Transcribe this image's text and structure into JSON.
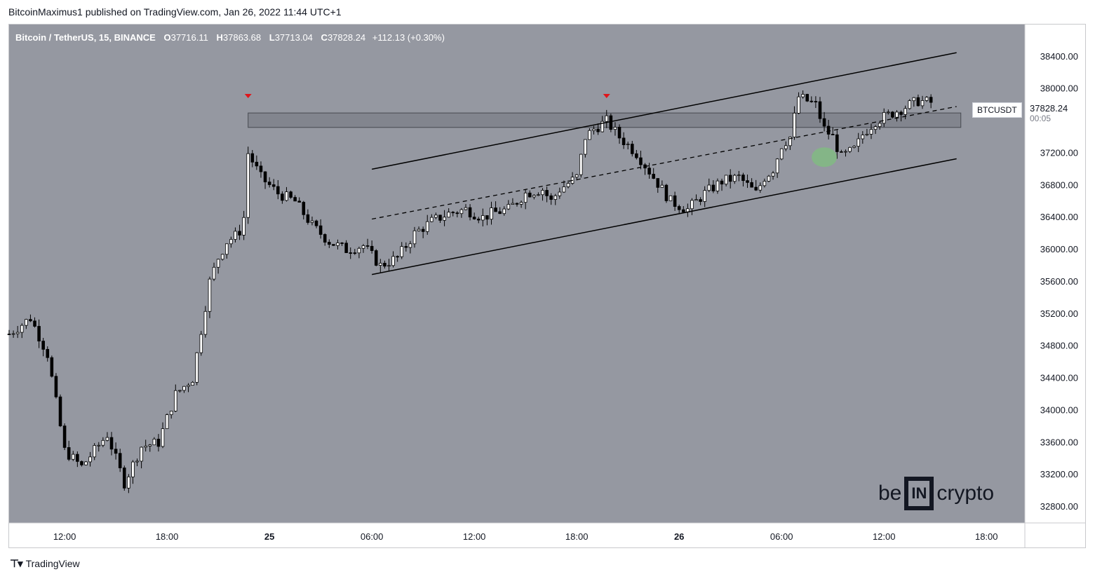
{
  "header": {
    "publish_line": "BitcoinMaximus1 published on TradingView.com, Jan 26, 2022 11:44 UTC+1"
  },
  "legend": {
    "symbol": "Bitcoin / TetherUS, 15, BINANCE",
    "open_label": "O",
    "open": "37716.11",
    "high_label": "H",
    "high": "37863.68",
    "low_label": "L",
    "low": "37713.04",
    "close_label": "C",
    "close": "37828.24",
    "change": "+112.13 (+0.30%)"
  },
  "currency_badge": "USDT",
  "symbol_tag": "BTCUSDT",
  "price_tag": {
    "price": "37828.24",
    "countdown": "00:05"
  },
  "watermark": {
    "left": "be",
    "middle": "IN",
    "right": "crypto"
  },
  "footer": {
    "brand": "TradingView"
  },
  "colors": {
    "plot_bg": "#9598a1",
    "bull": "#ffffff",
    "bear": "#000000",
    "marker": "#e0151b",
    "highlight": "#7fbf7f"
  },
  "chart_data": {
    "type": "candlestick",
    "symbol": "BTCUSDT",
    "timeframe": "15",
    "exchange": "BINANCE",
    "y_ticks": [
      38400,
      38000,
      37600,
      37200,
      36800,
      36400,
      36000,
      35600,
      35200,
      34800,
      34400,
      34000,
      33600,
      33200,
      32800
    ],
    "y_tick_labels": [
      "38400.00",
      "38000.00",
      "37600.00",
      "37200.00",
      "36800.00",
      "36400.00",
      "36000.00",
      "35600.00",
      "35200.00",
      "34800.00",
      "34400.00",
      "34000.00",
      "33600.00",
      "33200.00",
      "32800.00"
    ],
    "ylim": [
      32600,
      38800
    ],
    "x_tick_labels": [
      "12:00",
      "18:00",
      "25",
      "06:00",
      "12:00",
      "18:00",
      "26",
      "06:00",
      "12:00",
      "18:00"
    ],
    "x_tick_bold": [
      false,
      false,
      true,
      false,
      false,
      false,
      true,
      false,
      false,
      false
    ],
    "x_tick_hours": [
      12,
      18,
      24,
      30,
      36,
      42,
      48,
      54,
      60,
      66
    ],
    "xlim_hours": [
      8.75,
      68.25
    ],
    "horizontal_zone": {
      "from_hour": 22.75,
      "to_hour": 64.5,
      "low": 37520,
      "high": 37700
    },
    "channel": {
      "upper": [
        [
          30.0,
          37000
        ],
        [
          64.25,
          38450
        ]
      ],
      "middle": [
        [
          30.0,
          36380
        ],
        [
          64.25,
          37780
        ]
      ],
      "lower": [
        [
          30.0,
          35690
        ],
        [
          64.25,
          37130
        ]
      ]
    },
    "resistance_markers": [
      {
        "hour": 22.75,
        "price": 37780
      },
      {
        "hour": 43.75,
        "price": 37780
      }
    ],
    "highlight_point": {
      "hour": 56.5,
      "price": 37150
    },
    "path": [
      [
        8.75,
        34950
      ],
      [
        10.0,
        35150
      ],
      [
        11.0,
        34700
      ],
      [
        12.0,
        33500
      ],
      [
        13.0,
        33300
      ],
      [
        14.5,
        33700
      ],
      [
        15.5,
        33100
      ],
      [
        16.5,
        33550
      ],
      [
        17.5,
        33600
      ],
      [
        18.5,
        34200
      ],
      [
        19.5,
        34400
      ],
      [
        20.0,
        35000
      ],
      [
        20.5,
        35600
      ],
      [
        21.0,
        35900
      ],
      [
        21.5,
        36100
      ],
      [
        22.2,
        36200
      ],
      [
        22.5,
        36400
      ],
      [
        22.75,
        37200
      ],
      [
        23.5,
        36900
      ],
      [
        24.5,
        36700
      ],
      [
        25.5,
        36600
      ],
      [
        26.5,
        36300
      ],
      [
        27.5,
        36100
      ],
      [
        28.5,
        36000
      ],
      [
        29.5,
        36050
      ],
      [
        30.5,
        35800
      ],
      [
        31.5,
        35900
      ],
      [
        32.5,
        36200
      ],
      [
        33.5,
        36350
      ],
      [
        34.5,
        36450
      ],
      [
        35.5,
        36500
      ],
      [
        36.5,
        36400
      ],
      [
        37.0,
        36450
      ],
      [
        38.0,
        36500
      ],
      [
        39.0,
        36700
      ],
      [
        40.0,
        36750
      ],
      [
        40.5,
        36600
      ],
      [
        41.0,
        36750
      ],
      [
        42.0,
        36900
      ],
      [
        42.5,
        37400
      ],
      [
        43.0,
        37500
      ],
      [
        43.75,
        37600
      ],
      [
        44.5,
        37400
      ],
      [
        45.5,
        37200
      ],
      [
        46.5,
        36900
      ],
      [
        47.5,
        36600
      ],
      [
        48.5,
        36500
      ],
      [
        49.5,
        36700
      ],
      [
        50.5,
        36850
      ],
      [
        51.5,
        36900
      ],
      [
        52.5,
        36700
      ],
      [
        53.0,
        36900
      ],
      [
        53.5,
        37000
      ],
      [
        54.0,
        37300
      ],
      [
        54.5,
        37400
      ],
      [
        55.0,
        37900
      ],
      [
        56.0,
        37800
      ],
      [
        56.5,
        37500
      ],
      [
        57.0,
        37400
      ],
      [
        57.5,
        37150
      ],
      [
        58.3,
        37250
      ],
      [
        58.8,
        37450
      ],
      [
        59.5,
        37600
      ],
      [
        60.5,
        37700
      ],
      [
        61.0,
        37750
      ],
      [
        62.0,
        37850
      ],
      [
        62.75,
        37830
      ]
    ]
  }
}
